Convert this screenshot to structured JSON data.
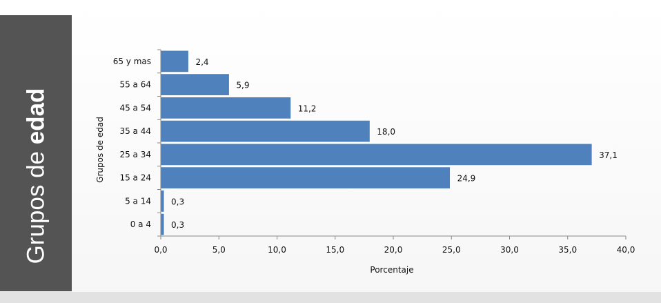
{
  "side_panel": {
    "title_regular": "Grupos de ",
    "title_bold": "edad"
  },
  "chart_data": {
    "type": "bar",
    "orientation": "horizontal",
    "categories": [
      "0 a 4",
      "5 a 14",
      "15 a 24",
      "25 a 34",
      "35 a 44",
      "45 a 54",
      "55 a 64",
      "65 y mas"
    ],
    "values": [
      0.3,
      0.3,
      24.9,
      37.1,
      18.0,
      11.2,
      5.9,
      2.4
    ],
    "data_labels": [
      "0,3",
      "0,3",
      "24,9",
      "37,1",
      "18,0",
      "11,2",
      "5,9",
      "2,4"
    ],
    "xlabel": "Porcentaje",
    "ylabel": "Grupos de edad",
    "xlim": [
      0,
      40
    ],
    "xticks": [
      0,
      5,
      10,
      15,
      20,
      25,
      30,
      35,
      40
    ],
    "xtick_labels": [
      "0,0",
      "5,0",
      "10,0",
      "15,0",
      "20,0",
      "25,0",
      "30,0",
      "35,0",
      "40,0"
    ],
    "grid": false,
    "legend": "none",
    "bar_color": "#4f81bd"
  }
}
